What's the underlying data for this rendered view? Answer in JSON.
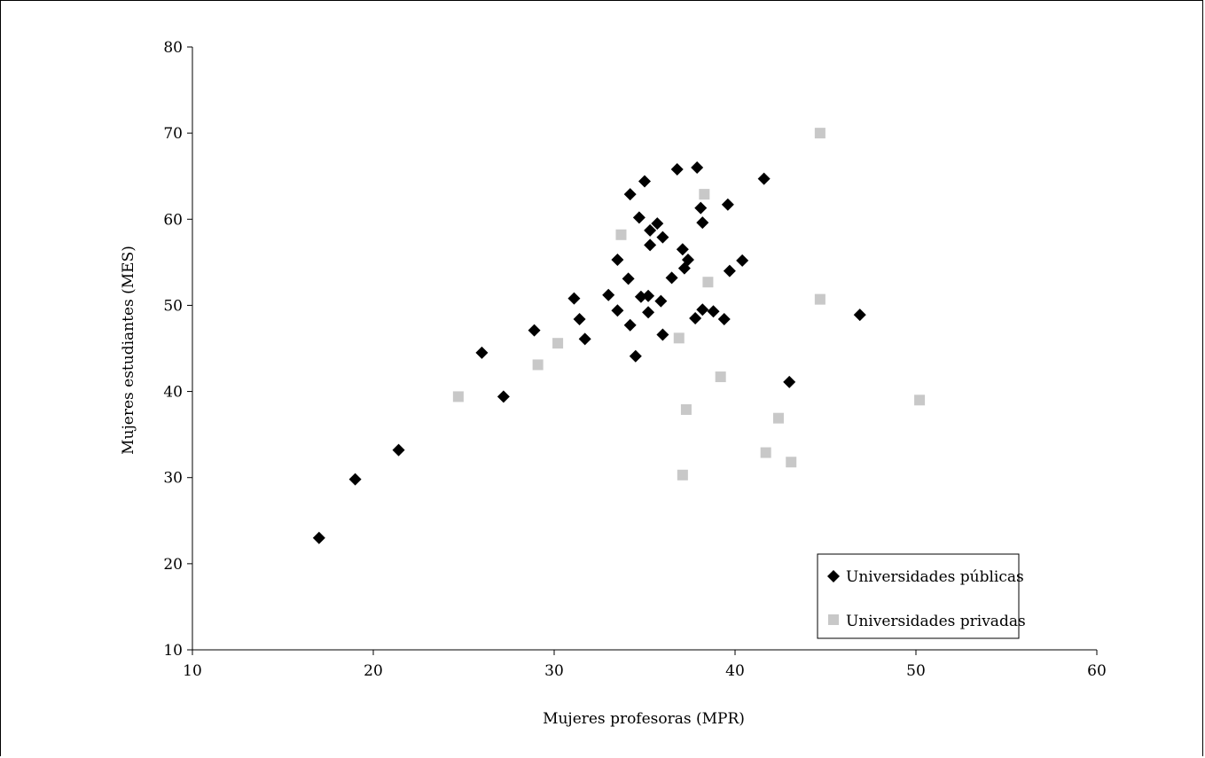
{
  "chart_data": {
    "type": "scatter",
    "title": "",
    "xlabel": "Mujeres profesoras (MPR)",
    "ylabel": "Mujeres estudiantes (MES)",
    "xlim": [
      10,
      60
    ],
    "ylim": [
      10,
      80
    ],
    "xticks": [
      10,
      20,
      30,
      40,
      50,
      60
    ],
    "yticks": [
      10,
      20,
      30,
      40,
      50,
      60,
      70,
      80
    ],
    "grid": false,
    "legend_position": "bottom-right",
    "series": [
      {
        "name": "Universidades públicas",
        "marker": "diamond",
        "color": "#000000",
        "points": [
          [
            17.0,
            23.0
          ],
          [
            19.0,
            29.8
          ],
          [
            21.4,
            33.2
          ],
          [
            26.0,
            44.5
          ],
          [
            27.2,
            39.4
          ],
          [
            28.9,
            47.1
          ],
          [
            31.1,
            50.8
          ],
          [
            31.4,
            48.4
          ],
          [
            31.7,
            46.1
          ],
          [
            33.0,
            51.2
          ],
          [
            33.5,
            55.3
          ],
          [
            33.5,
            49.4
          ],
          [
            34.1,
            53.1
          ],
          [
            34.2,
            47.7
          ],
          [
            34.2,
            62.9
          ],
          [
            34.5,
            44.1
          ],
          [
            34.7,
            60.2
          ],
          [
            34.8,
            51.0
          ],
          [
            35.0,
            64.4
          ],
          [
            35.2,
            51.1
          ],
          [
            35.2,
            49.2
          ],
          [
            35.3,
            58.7
          ],
          [
            35.3,
            57.0
          ],
          [
            35.7,
            59.5
          ],
          [
            35.9,
            50.5
          ],
          [
            36.0,
            46.6
          ],
          [
            36.0,
            57.9
          ],
          [
            36.5,
            53.2
          ],
          [
            36.8,
            65.8
          ],
          [
            37.1,
            56.5
          ],
          [
            37.2,
            54.3
          ],
          [
            37.4,
            55.3
          ],
          [
            37.8,
            48.5
          ],
          [
            37.9,
            66.0
          ],
          [
            38.1,
            61.3
          ],
          [
            38.2,
            59.6
          ],
          [
            38.2,
            49.5
          ],
          [
            38.8,
            49.3
          ],
          [
            39.4,
            48.4
          ],
          [
            39.6,
            61.7
          ],
          [
            39.7,
            54.0
          ],
          [
            40.4,
            55.2
          ],
          [
            41.6,
            64.7
          ],
          [
            43.0,
            41.1
          ],
          [
            46.9,
            48.9
          ]
        ]
      },
      {
        "name": "Universidades privadas",
        "marker": "square",
        "color": "#c8c8c8",
        "points": [
          [
            24.7,
            39.4
          ],
          [
            29.1,
            43.1
          ],
          [
            30.2,
            45.6
          ],
          [
            33.7,
            58.2
          ],
          [
            36.9,
            46.2
          ],
          [
            37.1,
            30.3
          ],
          [
            37.3,
            37.9
          ],
          [
            38.3,
            62.9
          ],
          [
            38.5,
            52.7
          ],
          [
            39.2,
            41.7
          ],
          [
            41.7,
            32.9
          ],
          [
            42.4,
            36.9
          ],
          [
            43.1,
            31.8
          ],
          [
            44.7,
            70.0
          ],
          [
            44.7,
            50.7
          ],
          [
            50.2,
            39.0
          ]
        ]
      }
    ]
  }
}
